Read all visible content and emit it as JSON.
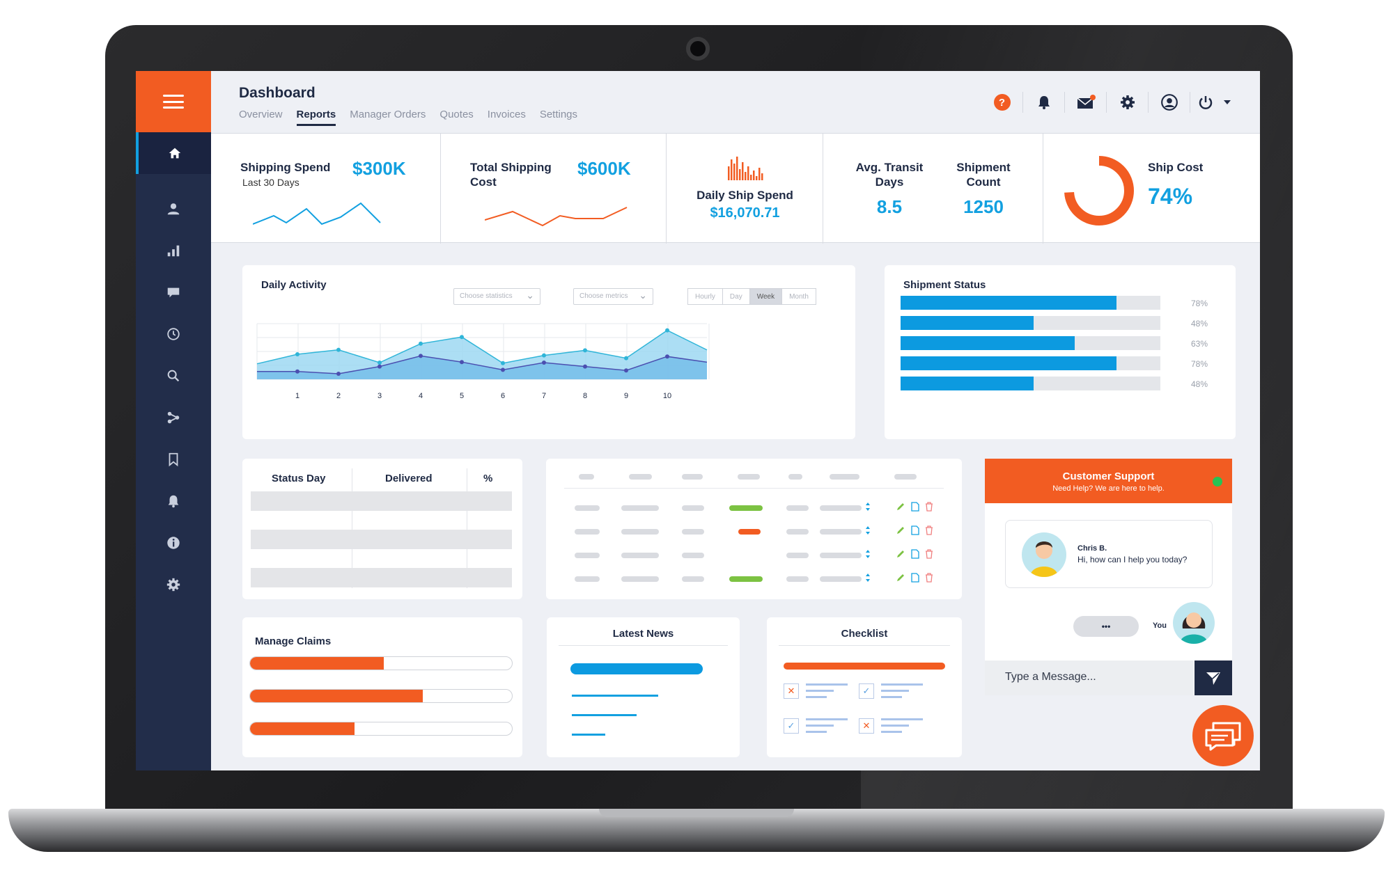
{
  "app": {
    "title": "Dashboard",
    "tabs": [
      "Overview",
      "Reports",
      "Manager Orders",
      "Quotes",
      "Invoices",
      "Settings"
    ],
    "active_tab": "Reports",
    "help_label": "?",
    "colors": {
      "accent": "#f25c22",
      "primary": "#12a0e0",
      "sidebar": "#222d4a"
    }
  },
  "sidebar": {
    "items": [
      {
        "icon": "home-icon"
      },
      {
        "icon": "user-icon"
      },
      {
        "icon": "bar-chart-icon"
      },
      {
        "icon": "message-icon"
      },
      {
        "icon": "clock-icon"
      },
      {
        "icon": "search-icon"
      },
      {
        "icon": "share-icon"
      },
      {
        "icon": "bookmark-icon"
      },
      {
        "icon": "bell-icon"
      },
      {
        "icon": "info-icon"
      },
      {
        "icon": "gear-icon"
      }
    ]
  },
  "kpis": {
    "shipping_spend": {
      "label": "Shipping Spend",
      "sub": "Last 30 Days",
      "value": "$300K"
    },
    "total_shipping": {
      "label": "Total Shipping Cost",
      "value": "$600K"
    },
    "daily_ship": {
      "label": "Daily Ship Spend",
      "value": "$16,070.71"
    },
    "transit": {
      "label": "Avg. Transit Days",
      "value": "8.5"
    },
    "shipment_count": {
      "label": "Shipment Count",
      "value": "1250"
    },
    "ship_cost": {
      "label": "Ship Cost",
      "value": "74%",
      "percent": 74
    }
  },
  "daily_activity": {
    "title": "Daily Activity",
    "stat_placeholder": "Choose statistics",
    "metric_placeholder": "Choose metrics",
    "ranges": [
      "Hourly",
      "Day",
      "Week",
      "Month"
    ],
    "active_range": "Week"
  },
  "chart_data": {
    "type": "area",
    "x": [
      1,
      2,
      3,
      4,
      5,
      6,
      7,
      8,
      9,
      10
    ],
    "series": [
      {
        "values": [
          45,
          53,
          30,
          64,
          76,
          29,
          43,
          52,
          38,
          88
        ]
      },
      {
        "values": [
          14,
          10,
          23,
          42,
          31,
          17,
          30,
          23,
          16,
          41
        ]
      }
    ]
  },
  "shipment_status": {
    "title": "Shipment Status",
    "bars": [
      {
        "value": 78,
        "label": "78%"
      },
      {
        "value": 48,
        "label": "48%"
      },
      {
        "value": 63,
        "label": "63%"
      },
      {
        "value": 78,
        "label": "78%"
      },
      {
        "value": 48,
        "label": "48%"
      }
    ]
  },
  "status_table": {
    "headers": [
      "Status Day",
      "Delivered",
      "%"
    ]
  },
  "manage_claims": {
    "title": "Manage Claims",
    "progress": [
      51,
      66,
      40
    ]
  },
  "latest_news": {
    "title": "Latest News"
  },
  "checklist": {
    "title": "Checklist"
  },
  "support": {
    "title": "Customer Support",
    "subtitle": "Need Help? We are here to help.",
    "agent_name": "Chris B.",
    "agent_message": "Hi, how can I help you today?",
    "typing": "•••",
    "you_label": "You",
    "input_placeholder": "Type a Message..."
  }
}
